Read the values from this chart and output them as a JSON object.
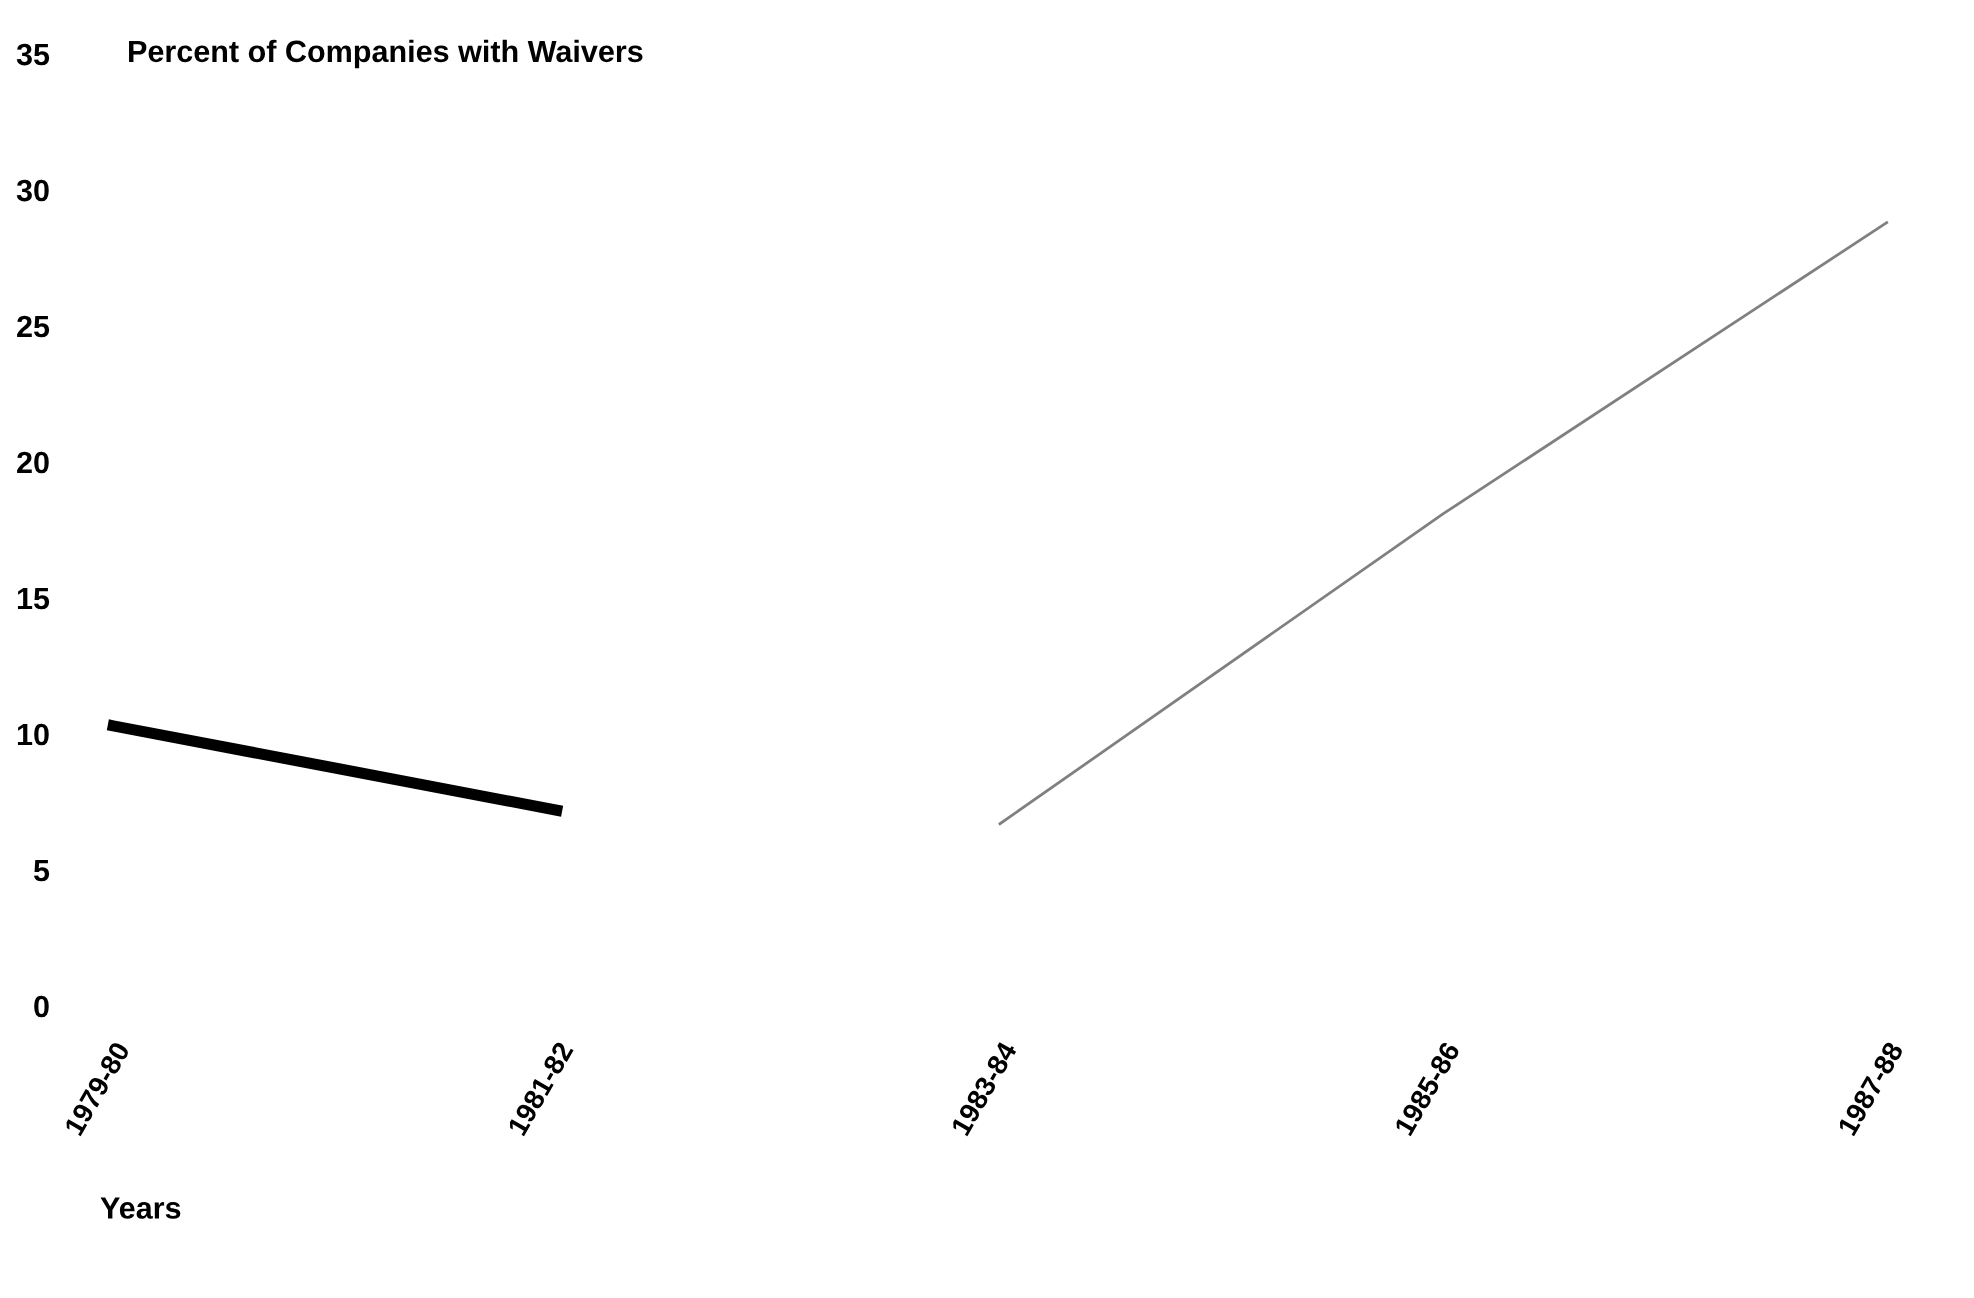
{
  "chart_data": {
    "type": "line",
    "title": "Percent of Companies with Waivers",
    "xlabel": "Years",
    "categories": [
      "1979-80",
      "1981-82",
      "1983-84",
      "1985-86",
      "1987-88"
    ],
    "series": [
      {
        "color": "#000000",
        "values": [
          10.3,
          7.2,
          null,
          null,
          null
        ]
      },
      {
        "color": "#808080",
        "values": [
          null,
          null,
          6.7,
          18.1,
          28.8
        ]
      }
    ],
    "ylim": [
      0,
      35
    ],
    "yticks": [
      0,
      5,
      10,
      15,
      20,
      25,
      30,
      35
    ],
    "grid": false,
    "marker": "none",
    "line_style": "solid"
  }
}
